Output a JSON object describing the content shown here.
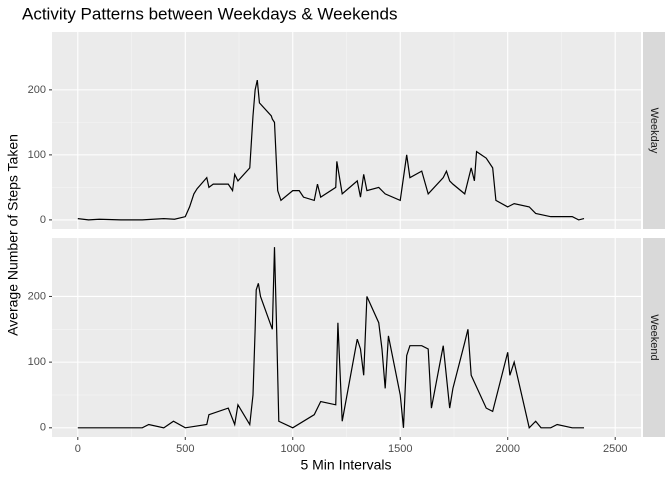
{
  "chart_data": {
    "type": "line",
    "title": "Activity Patterns between Weekdays & Weekends",
    "x_label": "5 Min Intervals",
    "y_label": "Average Number of Steps Taken",
    "xlim": [
      -120,
      2620
    ],
    "ylim": [
      -14,
      289
    ],
    "xticks": [
      0,
      500,
      1000,
      1500,
      2000,
      2500
    ],
    "yticks": [
      0,
      100,
      200
    ],
    "grid": true,
    "series": [
      {
        "name": "Weekday",
        "color": "#000000",
        "x": [
          0,
          50,
          100,
          200,
          300,
          400,
          450,
          500,
          520,
          540,
          555,
          600,
          610,
          630,
          700,
          720,
          730,
          745,
          800,
          815,
          825,
          835,
          845,
          900,
          905,
          915,
          930,
          945,
          1000,
          1030,
          1050,
          1100,
          1115,
          1130,
          1200,
          1205,
          1215,
          1230,
          1300,
          1315,
          1330,
          1345,
          1400,
          1430,
          1500,
          1530,
          1545,
          1600,
          1630,
          1700,
          1715,
          1730,
          1745,
          1800,
          1830,
          1845,
          1855,
          1900,
          1930,
          1945,
          2000,
          2030,
          2100,
          2130,
          2200,
          2230,
          2300,
          2330,
          2355
        ],
        "values": [
          2,
          0,
          1,
          0,
          0,
          2,
          1,
          5,
          20,
          40,
          48,
          65,
          50,
          55,
          55,
          45,
          70,
          60,
          80,
          160,
          200,
          215,
          180,
          160,
          155,
          150,
          45,
          30,
          45,
          45,
          35,
          30,
          55,
          35,
          50,
          90,
          70,
          40,
          60,
          35,
          70,
          45,
          50,
          40,
          30,
          100,
          65,
          75,
          40,
          65,
          75,
          60,
          55,
          40,
          80,
          60,
          105,
          95,
          80,
          30,
          20,
          25,
          20,
          10,
          5,
          5,
          5,
          0,
          2
        ]
      },
      {
        "name": "Weekend",
        "color": "#000000",
        "x": [
          0,
          300,
          330,
          400,
          445,
          500,
          600,
          610,
          700,
          730,
          745,
          800,
          815,
          825,
          830,
          840,
          850,
          905,
          915,
          925,
          935,
          1000,
          1100,
          1130,
          1200,
          1210,
          1230,
          1300,
          1315,
          1330,
          1345,
          1400,
          1415,
          1430,
          1445,
          1500,
          1515,
          1530,
          1545,
          1600,
          1630,
          1645,
          1700,
          1730,
          1745,
          1800,
          1815,
          1830,
          1900,
          1930,
          2000,
          2010,
          2030,
          2100,
          2130,
          2155,
          2200,
          2230,
          2300,
          2355
        ],
        "values": [
          0,
          0,
          5,
          0,
          10,
          0,
          5,
          20,
          30,
          5,
          35,
          5,
          50,
          150,
          210,
          220,
          200,
          150,
          275,
          150,
          10,
          0,
          20,
          40,
          35,
          160,
          10,
          135,
          120,
          80,
          200,
          160,
          120,
          60,
          140,
          50,
          0,
          110,
          125,
          125,
          120,
          30,
          125,
          30,
          60,
          130,
          150,
          80,
          30,
          25,
          115,
          80,
          100,
          0,
          10,
          0,
          0,
          5,
          0,
          0
        ]
      }
    ]
  }
}
